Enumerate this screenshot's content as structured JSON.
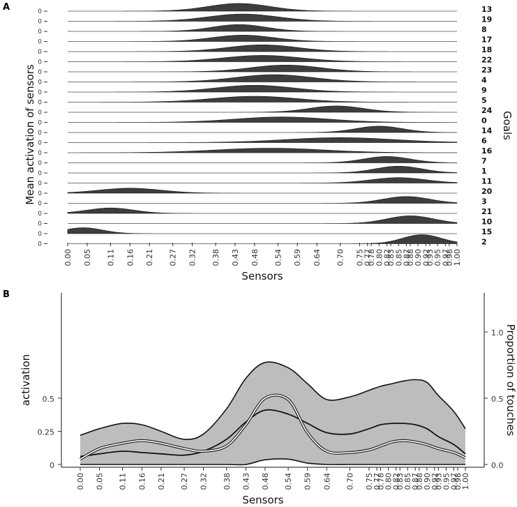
{
  "figure": {
    "panel_a_letter": "A",
    "panel_b_letter": "B"
  },
  "chart_data": [
    {
      "type": "area",
      "panel": "A",
      "title": "",
      "xlabel": "Sensors",
      "ylabel": "Mean activation of sensors",
      "right_label": "Goals",
      "row_zero_label": "0",
      "x_tick_labels": [
        "0.00",
        "0.05",
        "0.11",
        "0.16",
        "0.21",
        "0.27",
        "0.32",
        "0.38",
        "0.43",
        "0.48",
        "0.54",
        "0.59",
        "0.64",
        "0.70",
        "0.75",
        "0.77",
        "0.78",
        "0.80",
        "0.82",
        "0.83",
        "0.85",
        "0.87",
        "0.88",
        "0.90",
        "0.92",
        "0.93",
        "0.95",
        "0.97",
        "0.98",
        "1.00"
      ],
      "sensor_x": [
        0.0,
        0.05,
        0.11,
        0.16,
        0.21,
        0.27,
        0.32,
        0.38,
        0.43,
        0.48,
        0.54,
        0.59,
        0.64,
        0.7,
        0.75,
        0.77,
        0.78,
        0.8,
        0.82,
        0.83,
        0.85,
        0.87,
        0.88,
        0.9,
        0.92,
        0.93,
        0.95,
        0.97,
        0.98,
        1.0
      ],
      "series": [
        {
          "name": "13",
          "center": 0.44,
          "width": 0.08,
          "height": 0.85
        },
        {
          "name": "19",
          "center": 0.45,
          "width": 0.09,
          "height": 0.8
        },
        {
          "name": "8",
          "center": 0.44,
          "width": 0.07,
          "height": 0.75
        },
        {
          "name": "17",
          "center": 0.45,
          "width": 0.08,
          "height": 0.7
        },
        {
          "name": "18",
          "center": 0.5,
          "width": 0.09,
          "height": 0.75
        },
        {
          "name": "22",
          "center": 0.5,
          "width": 0.1,
          "height": 0.7
        },
        {
          "name": "23",
          "center": 0.56,
          "width": 0.09,
          "height": 0.75
        },
        {
          "name": "4",
          "center": 0.53,
          "width": 0.1,
          "height": 0.8
        },
        {
          "name": "9",
          "center": 0.48,
          "width": 0.1,
          "height": 0.75
        },
        {
          "name": "5",
          "center": 0.48,
          "width": 0.11,
          "height": 0.65
        },
        {
          "name": "24",
          "center": 0.69,
          "width": 0.07,
          "height": 0.7
        },
        {
          "name": "0",
          "center": 0.55,
          "width": 0.12,
          "height": 0.6
        },
        {
          "name": "14",
          "center": 0.8,
          "width": 0.06,
          "height": 0.7
        },
        {
          "name": "6",
          "center": 0.7,
          "width": 0.14,
          "height": 0.55
        },
        {
          "name": "16",
          "center": 0.52,
          "width": 0.14,
          "height": 0.5
        },
        {
          "name": "7",
          "center": 0.82,
          "width": 0.06,
          "height": 0.7
        },
        {
          "name": "1",
          "center": 0.85,
          "width": 0.06,
          "height": 0.75
        },
        {
          "name": "11",
          "center": 0.85,
          "width": 0.07,
          "height": 0.6
        },
        {
          "name": "20",
          "center": 0.16,
          "width": 0.08,
          "height": 0.55
        },
        {
          "name": "3",
          "center": 0.87,
          "width": 0.06,
          "height": 0.75
        },
        {
          "name": "21",
          "center": 0.11,
          "width": 0.06,
          "height": 0.6
        },
        {
          "name": "10",
          "center": 0.88,
          "width": 0.06,
          "height": 0.85
        },
        {
          "name": "15",
          "center": 0.04,
          "width": 0.05,
          "height": 0.65
        },
        {
          "name": "2",
          "center": 0.91,
          "width": 0.05,
          "height": 1.0
        }
      ]
    },
    {
      "type": "area",
      "panel": "B",
      "title": "",
      "xlabel": "Sensors",
      "ylabel": "activation",
      "y2label": "Proportion of touches",
      "x_tick_labels": [
        "0.00",
        "0.05",
        "0.11",
        "0.16",
        "0.21",
        "0.27",
        "0.32",
        "0.38",
        "0.43",
        "0.48",
        "0.54",
        "0.59",
        "0.64",
        "0.70",
        "0.75",
        "0.77",
        "0.78",
        "0.80",
        "0.82",
        "0.83",
        "0.85",
        "0.87",
        "0.88",
        "0.90",
        "0.92",
        "0.93",
        "0.95",
        "0.97",
        "0.98",
        "1.00"
      ],
      "ylim": [
        0,
        1.25
      ],
      "yticks": [
        0,
        0.25,
        0.5
      ],
      "ytick_labels": [
        "0",
        "0.25",
        "0.5"
      ],
      "y2lim": [
        0,
        1.25
      ],
      "y2ticks": [
        0,
        0.5,
        1.0
      ],
      "y2tick_labels": [
        "0.0",
        "0.5",
        "1.0"
      ],
      "x": [
        0.0,
        0.05,
        0.11,
        0.16,
        0.21,
        0.27,
        0.32,
        0.38,
        0.43,
        0.48,
        0.54,
        0.59,
        0.64,
        0.7,
        0.75,
        0.78,
        0.81,
        0.84,
        0.87,
        0.9,
        0.93,
        0.97,
        1.0
      ],
      "series": [
        {
          "name": "",
          "role": "upper",
          "values": [
            0.22,
            0.27,
            0.31,
            0.3,
            0.25,
            0.19,
            0.23,
            0.42,
            0.65,
            0.77,
            0.73,
            0.61,
            0.49,
            0.51,
            0.56,
            0.59,
            0.61,
            0.63,
            0.64,
            0.62,
            0.52,
            0.4,
            0.27
          ]
        },
        {
          "name": "",
          "role": "lower",
          "values": [
            0.0,
            0.0,
            0.0,
            0.0,
            0.0,
            0.0,
            0.0,
            0.0,
            0.0,
            0.035,
            0.04,
            0.01,
            0.0,
            0.0,
            0.0,
            0.0,
            0.0,
            0.0,
            0.0,
            0.0,
            0.0,
            0.0,
            0.0
          ]
        },
        {
          "name": "",
          "role": "mean",
          "values": [
            0.06,
            0.08,
            0.1,
            0.09,
            0.08,
            0.07,
            0.1,
            0.19,
            0.32,
            0.41,
            0.38,
            0.31,
            0.24,
            0.23,
            0.27,
            0.3,
            0.31,
            0.31,
            0.3,
            0.27,
            0.21,
            0.15,
            0.08
          ]
        },
        {
          "name": "",
          "role": "touches",
          "values": [
            0.04,
            0.12,
            0.16,
            0.18,
            0.16,
            0.12,
            0.1,
            0.14,
            0.3,
            0.5,
            0.49,
            0.24,
            0.1,
            0.09,
            0.11,
            0.14,
            0.17,
            0.18,
            0.17,
            0.15,
            0.12,
            0.09,
            0.05
          ]
        }
      ]
    }
  ]
}
